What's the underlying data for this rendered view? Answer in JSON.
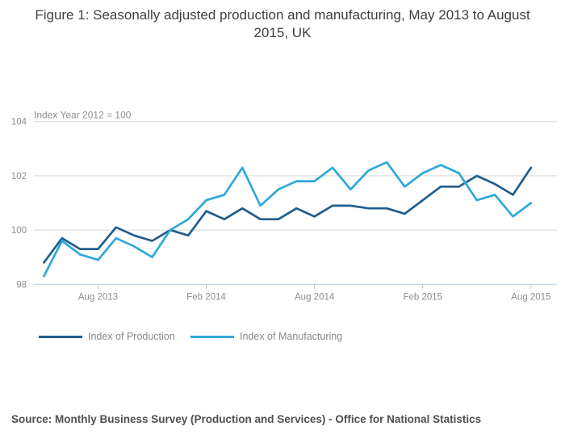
{
  "title": "Figure 1: Seasonally adjusted production and manufacturing, May 2013 to August 2015, UK",
  "source": "Source: Monthly Business Survey (Production and Services) - Office for National Statistics",
  "chart_data": {
    "type": "line",
    "unit_label": "Index Year 2012 = 100",
    "x": [
      "May 2013",
      "Jun 2013",
      "Jul 2013",
      "Aug 2013",
      "Sep 2013",
      "Oct 2013",
      "Nov 2013",
      "Dec 2013",
      "Jan 2014",
      "Feb 2014",
      "Mar 2014",
      "Apr 2014",
      "May 2014",
      "Jun 2014",
      "Jul 2014",
      "Aug 2014",
      "Sep 2014",
      "Oct 2014",
      "Nov 2014",
      "Dec 2014",
      "Jan 2015",
      "Feb 2015",
      "Mar 2015",
      "Apr 2015",
      "May 2015",
      "Jun 2015",
      "Jul 2015",
      "Aug 2015"
    ],
    "x_tick_labels": [
      "Aug 2013",
      "Feb 2014",
      "Aug 2014",
      "Feb 2015",
      "Aug 2015"
    ],
    "x_tick_indices": [
      3,
      9,
      15,
      21,
      27
    ],
    "y_ticks": [
      98,
      100,
      102,
      104
    ],
    "ylim": [
      98,
      104
    ],
    "grid": true,
    "legend_position": "bottom-left",
    "series": [
      {
        "name": "Index of Production",
        "color": "#205d8d",
        "values": [
          98.8,
          99.7,
          99.3,
          99.3,
          100.1,
          99.8,
          99.6,
          100.0,
          99.8,
          100.7,
          100.4,
          100.8,
          100.4,
          100.4,
          100.8,
          100.5,
          100.9,
          100.9,
          100.8,
          100.8,
          100.6,
          101.1,
          101.6,
          101.6,
          102.0,
          101.7,
          101.3,
          102.3
        ]
      },
      {
        "name": "Index of Manufacturing",
        "color": "#2fa8d9",
        "values": [
          98.3,
          99.6,
          99.1,
          98.9,
          99.7,
          99.4,
          99.0,
          100.0,
          100.4,
          101.1,
          101.3,
          102.3,
          100.9,
          101.5,
          101.8,
          101.8,
          102.3,
          101.5,
          102.2,
          102.5,
          101.6,
          102.1,
          102.4,
          102.1,
          101.1,
          101.3,
          100.5,
          101.0
        ]
      }
    ]
  },
  "colors": {
    "gridline": "#d9d9d9",
    "baseline": "#b9cce2",
    "tick": "#b6c1cf",
    "axis_text": "#8e8e8e"
  }
}
